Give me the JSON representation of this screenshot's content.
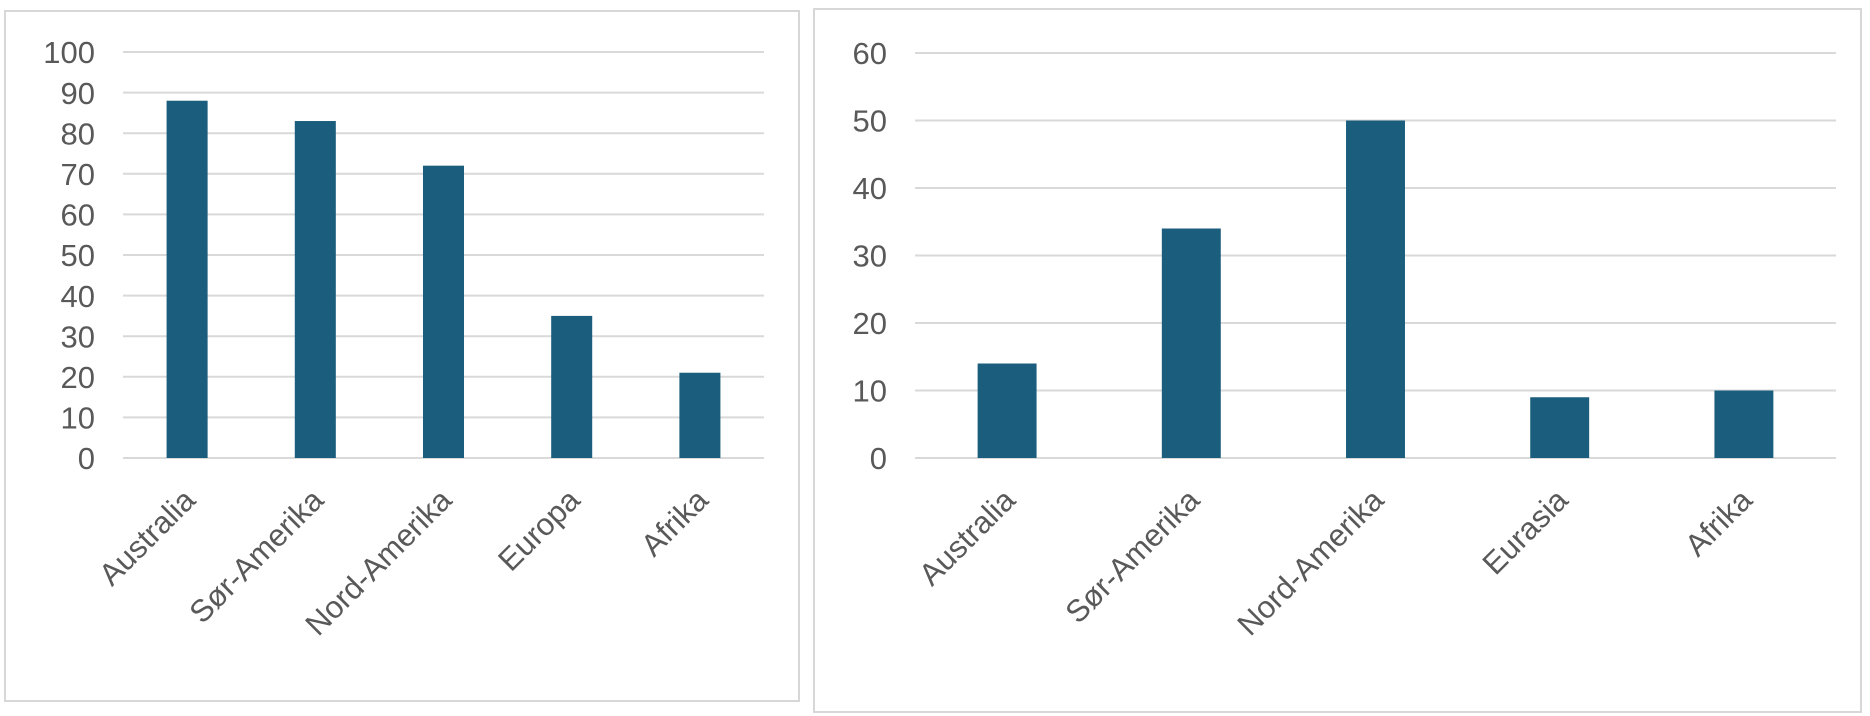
{
  "page": {
    "background_color": "#ffffff",
    "panel_border_color": "#d7d7d7"
  },
  "colors": {
    "bar_fill": "#1b5d7c",
    "gridline": "#d9d9d9",
    "axis_line": "#d9d9d9",
    "tick_text": "#595959",
    "category_text": "#595959"
  },
  "chart_data": [
    {
      "type": "bar",
      "title": "",
      "xlabel": "",
      "ylabel": "",
      "categories": [
        "Australia",
        "Sør-Amerika",
        "Nord-Amerika",
        "Europa",
        "Afrika"
      ],
      "values": [
        88,
        83,
        72,
        35,
        21
      ],
      "ylim": [
        0,
        100
      ],
      "ytick_step": 10,
      "ytick_labels": [
        "0",
        "10",
        "20",
        "30",
        "40",
        "50",
        "60",
        "70",
        "80",
        "90",
        "100"
      ],
      "grid": "horizontal",
      "legend": "none",
      "category_label_rotation_deg": -45
    },
    {
      "type": "bar",
      "title": "",
      "xlabel": "",
      "ylabel": "",
      "categories": [
        "Australia",
        "Sør-Amerika",
        "Nord-Amerika",
        "Eurasia",
        "Afrika"
      ],
      "values": [
        14,
        34,
        50,
        9,
        10
      ],
      "ylim": [
        0,
        60
      ],
      "ytick_step": 10,
      "ytick_labels": [
        "0",
        "10",
        "20",
        "30",
        "40",
        "50",
        "60"
      ],
      "grid": "horizontal",
      "legend": "none",
      "category_label_rotation_deg": -45
    }
  ]
}
